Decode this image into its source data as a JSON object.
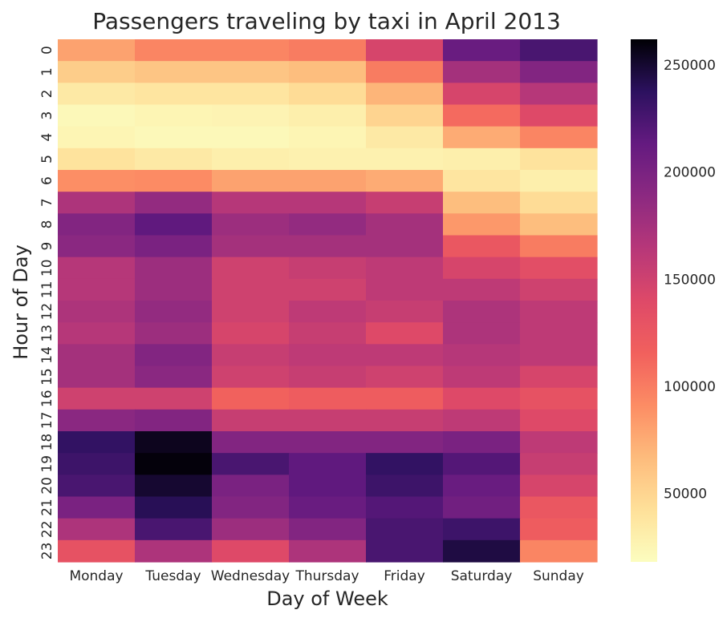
{
  "chart_data": {
    "type": "heatmap",
    "title": "Passengers traveling by taxi in April 2013",
    "xlabel": "Day of Week",
    "ylabel": "Hour of Day",
    "x_categories": [
      "Monday",
      "Tuesday",
      "Wednesday",
      "Thursday",
      "Friday",
      "Saturday",
      "Sunday"
    ],
    "y_categories": [
      "0",
      "1",
      "2",
      "3",
      "4",
      "5",
      "6",
      "7",
      "8",
      "9",
      "10",
      "11",
      "12",
      "13",
      "14",
      "15",
      "16",
      "17",
      "18",
      "19",
      "20",
      "21",
      "22",
      "23"
    ],
    "values": [
      [
        80000,
        95000,
        95000,
        100000,
        145000,
        210000,
        225000
      ],
      [
        55000,
        60000,
        60000,
        65000,
        100000,
        175000,
        195000
      ],
      [
        35000,
        38000,
        38000,
        45000,
        70000,
        145000,
        165000
      ],
      [
        22000,
        25000,
        26000,
        30000,
        50000,
        110000,
        140000
      ],
      [
        25000,
        22000,
        22000,
        25000,
        35000,
        75000,
        95000
      ],
      [
        40000,
        35000,
        30000,
        28000,
        28000,
        30000,
        40000
      ],
      [
        90000,
        92000,
        80000,
        80000,
        75000,
        38000,
        30000
      ],
      [
        170000,
        185000,
        165000,
        165000,
        155000,
        65000,
        45000
      ],
      [
        195000,
        215000,
        180000,
        185000,
        175000,
        85000,
        65000
      ],
      [
        190000,
        200000,
        175000,
        175000,
        175000,
        125000,
        100000
      ],
      [
        165000,
        180000,
        150000,
        155000,
        160000,
        145000,
        135000
      ],
      [
        165000,
        180000,
        150000,
        150000,
        160000,
        160000,
        150000
      ],
      [
        170000,
        185000,
        150000,
        160000,
        155000,
        170000,
        160000
      ],
      [
        165000,
        180000,
        145000,
        155000,
        140000,
        170000,
        160000
      ],
      [
        175000,
        195000,
        155000,
        160000,
        160000,
        165000,
        160000
      ],
      [
        175000,
        190000,
        150000,
        155000,
        150000,
        160000,
        145000
      ],
      [
        150000,
        150000,
        115000,
        120000,
        120000,
        140000,
        130000
      ],
      [
        190000,
        195000,
        155000,
        155000,
        155000,
        160000,
        140000
      ],
      [
        235000,
        255000,
        195000,
        195000,
        195000,
        200000,
        160000
      ],
      [
        230000,
        260000,
        225000,
        215000,
        235000,
        220000,
        155000
      ],
      [
        225000,
        250000,
        200000,
        215000,
        230000,
        210000,
        145000
      ],
      [
        200000,
        240000,
        195000,
        210000,
        220000,
        205000,
        125000
      ],
      [
        170000,
        225000,
        180000,
        195000,
        225000,
        230000,
        120000
      ],
      [
        130000,
        170000,
        140000,
        170000,
        225000,
        245000,
        95000
      ]
    ],
    "colormap": "magma_r",
    "vmin": 18000,
    "vmax": 262000,
    "colorbar_ticks": [
      50000,
      100000,
      150000,
      200000,
      250000
    ],
    "colorbar_tick_labels": [
      "50000",
      "100000",
      "150000",
      "200000",
      "250000"
    ],
    "colorbar_location": "right",
    "grid": false
  }
}
